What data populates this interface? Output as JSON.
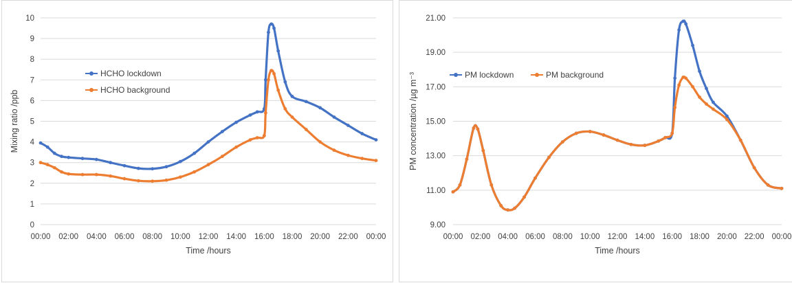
{
  "chart_data": [
    {
      "type": "line",
      "title": "",
      "xlabel": "Time /hours",
      "ylabel": "Mixing ratio /ppb",
      "ylim": [
        0,
        10
      ],
      "yticks": [
        "0",
        "1",
        "2",
        "3",
        "4",
        "5",
        "6",
        "7",
        "8",
        "9",
        "10"
      ],
      "xlim": [
        0,
        24
      ],
      "xticks": [
        "00:00",
        "02:00",
        "04:00",
        "06:00",
        "08:00",
        "10:00",
        "12:00",
        "14:00",
        "16:00",
        "18:00",
        "20:00",
        "22:00",
        "00:00"
      ],
      "grid": "horizontal",
      "legend_position": "left-center",
      "series": [
        {
          "name": "HCHO lockdown",
          "color": "#4472C4",
          "x": [
            0,
            0.5,
            1,
            1.5,
            2,
            3,
            4,
            5,
            6,
            7,
            8,
            9,
            10,
            11,
            12,
            13,
            14,
            15,
            15.5,
            16,
            16.1,
            16.3,
            16.5,
            16.7,
            17,
            17.5,
            18,
            19,
            20,
            21,
            22,
            23,
            24
          ],
          "y": [
            3.95,
            3.75,
            3.45,
            3.3,
            3.25,
            3.2,
            3.15,
            3.0,
            2.85,
            2.72,
            2.7,
            2.8,
            3.05,
            3.45,
            4.0,
            4.5,
            4.95,
            5.3,
            5.45,
            5.6,
            7.0,
            9.3,
            9.7,
            9.5,
            8.4,
            6.9,
            6.2,
            5.95,
            5.65,
            5.2,
            4.8,
            4.4,
            4.1
          ]
        },
        {
          "name": "HCHO background",
          "color": "#ED7D31",
          "x": [
            0,
            0.5,
            1,
            1.5,
            2,
            3,
            4,
            5,
            6,
            7,
            8,
            9,
            10,
            11,
            12,
            13,
            14,
            15,
            15.5,
            16,
            16.1,
            16.3,
            16.5,
            16.7,
            17,
            17.5,
            18,
            19,
            20,
            21,
            22,
            23,
            24
          ],
          "y": [
            3.0,
            2.9,
            2.75,
            2.55,
            2.45,
            2.42,
            2.42,
            2.35,
            2.22,
            2.12,
            2.1,
            2.15,
            2.3,
            2.55,
            2.9,
            3.3,
            3.75,
            4.1,
            4.2,
            4.3,
            5.4,
            7.0,
            7.45,
            7.3,
            6.5,
            5.6,
            5.2,
            4.6,
            4.0,
            3.6,
            3.35,
            3.2,
            3.1
          ]
        }
      ]
    },
    {
      "type": "line",
      "title": "",
      "xlabel": "Time /hours",
      "ylabel": "PM concentration /µg m⁻³",
      "ylim": [
        9,
        21
      ],
      "yticks": [
        "9.00",
        "11.00",
        "13.00",
        "15.00",
        "17.00",
        "19.00",
        "21.00"
      ],
      "xlim": [
        0,
        24
      ],
      "xticks": [
        "00:00",
        "02:00",
        "04:00",
        "06:00",
        "08:00",
        "10:00",
        "12:00",
        "14:00",
        "16:00",
        "18:00",
        "20:00",
        "22:00",
        "00:00"
      ],
      "grid": "horizontal",
      "legend_position": "top-left",
      "series": [
        {
          "name": "PM lockdown",
          "color": "#4472C4",
          "x": [
            0,
            0.5,
            1,
            1.5,
            1.8,
            2.2,
            2.8,
            3.5,
            4,
            4.5,
            5.2,
            6,
            7,
            8,
            9,
            10,
            11,
            12,
            13,
            14,
            15,
            15.5,
            16,
            16.2,
            16.5,
            16.8,
            17,
            17.5,
            18,
            18.5,
            19,
            20,
            21,
            22,
            23,
            24
          ],
          "y": [
            10.9,
            11.3,
            12.8,
            14.6,
            14.55,
            13.3,
            11.3,
            10.1,
            9.85,
            9.95,
            10.6,
            11.7,
            12.9,
            13.8,
            14.3,
            14.4,
            14.2,
            13.9,
            13.65,
            13.6,
            13.85,
            14.05,
            14.3,
            17.5,
            20.3,
            20.8,
            20.65,
            19.4,
            17.9,
            16.9,
            16.1,
            15.3,
            13.9,
            12.3,
            11.3,
            11.1
          ]
        },
        {
          "name": "PM background",
          "color": "#ED7D31",
          "x": [
            0,
            0.5,
            1,
            1.5,
            1.8,
            2.2,
            2.8,
            3.5,
            4,
            4.5,
            5.2,
            6,
            7,
            8,
            9,
            10,
            11,
            12,
            13,
            14,
            15,
            15.5,
            16,
            16.2,
            16.5,
            16.8,
            17,
            17.5,
            18,
            18.5,
            19,
            20,
            21,
            22,
            23,
            24
          ],
          "y": [
            10.9,
            11.3,
            12.8,
            14.6,
            14.55,
            13.3,
            11.3,
            10.1,
            9.85,
            9.95,
            10.6,
            11.7,
            12.9,
            13.8,
            14.3,
            14.4,
            14.2,
            13.9,
            13.65,
            13.6,
            13.85,
            14.05,
            14.3,
            15.8,
            17.1,
            17.55,
            17.5,
            17.0,
            16.4,
            16.0,
            15.7,
            15.1,
            13.9,
            12.3,
            11.3,
            11.1
          ]
        }
      ]
    }
  ]
}
